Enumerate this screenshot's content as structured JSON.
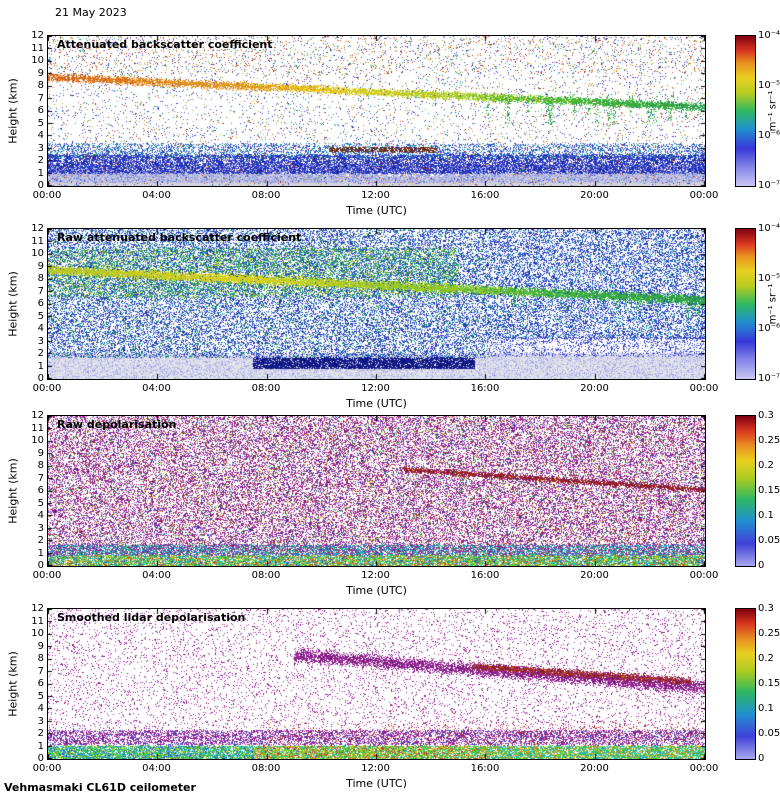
{
  "date_label": "21 May 2023",
  "footer": "Vehmasmaki CL61D ceilometer",
  "axis_color": "#000000",
  "chart_data": [
    {
      "type": "heatmap",
      "title": "Attenuated backscatter coefficient",
      "xlabel": "Time (UTC)",
      "ylabel": "Height (km)",
      "xlim": [
        0,
        24
      ],
      "ylim": [
        0,
        12
      ],
      "x_ticks": [
        "00:00",
        "04:00",
        "08:00",
        "12:00",
        "16:00",
        "20:00",
        "00:00"
      ],
      "y_ticks": [
        "0",
        "1",
        "2",
        "3",
        "4",
        "5",
        "6",
        "7",
        "8",
        "9",
        "10",
        "11",
        "12"
      ],
      "colorbar": {
        "scale": "log",
        "ticks": [
          "10⁻⁴",
          "10⁻⁵",
          "10⁻⁶",
          "10⁻⁷"
        ],
        "tick_pos": [
          0,
          0.3333,
          0.6667,
          1
        ],
        "unit": "m⁻¹ sr⁻¹",
        "stops": [
          [
            0,
            "#c8c8f4"
          ],
          [
            0.12,
            "#8888e8"
          ],
          [
            0.25,
            "#3838d8"
          ],
          [
            0.38,
            "#2090d0"
          ],
          [
            0.5,
            "#30b860"
          ],
          [
            0.62,
            "#b8cc20"
          ],
          [
            0.72,
            "#e8d020"
          ],
          [
            0.82,
            "#e89020"
          ],
          [
            0.9,
            "#d83820"
          ],
          [
            1,
            "#800010"
          ]
        ]
      },
      "features": [
        {
          "fill": [
            [
              0,
              1.45
            ],
            [
              2,
              1.3
            ],
            [
              4,
              1.12
            ],
            [
              6,
              1.0
            ],
            [
              8,
              0.95
            ],
            [
              10,
              0.85
            ],
            [
              12,
              0.78
            ],
            [
              13.5,
              0.7
            ],
            [
              15,
              0.78
            ],
            [
              17,
              0.9
            ],
            [
              19,
              1.0
            ],
            [
              21,
              1.05
            ],
            [
              24,
              1.15
            ]
          ],
          "colors": [
            "#d2d2dc"
          ]
        },
        {
          "t": [
            0,
            24
          ],
          "h": [
            0.25,
            1.7
          ],
          "count": 13000,
          "colors": [
            "#a8aee6",
            "#989ee0",
            "#b8bce9",
            "#8890dc",
            "#c6c8ee"
          ]
        },
        {
          "t": [
            0,
            24
          ],
          "h": [
            1.0,
            2.5
          ],
          "count": 14000,
          "colors": [
            "#1f2cb8",
            "#2a38c8",
            "#1422a8",
            "#3946d2"
          ]
        },
        {
          "t": [
            0,
            24
          ],
          "h": [
            2.2,
            3.4
          ],
          "count": 4500,
          "colors": [
            "#2a38c8",
            "#3946d2",
            "#2585c0",
            "#34a0b0"
          ]
        },
        {
          "t": [
            0,
            24
          ],
          "h": [
            0,
            12
          ],
          "count": 6500,
          "colors": [
            "#3946d2",
            "#2a38c8",
            "#2585c0",
            "#2fa04a",
            "#c05a20",
            "#b02828",
            "#c89c20",
            "#203890",
            "#3946d2"
          ]
        },
        {
          "t": [
            0,
            24
          ],
          "hstart": 8.7,
          "hend": 6.3,
          "sigma": 0.45,
          "count": 7500,
          "stops": [
            [
              0,
              "#d86818"
            ],
            [
              0.25,
              "#e09020"
            ],
            [
              0.45,
              "#e4cc20"
            ],
            [
              0.62,
              "#a8cc28"
            ],
            [
              0.8,
              "#48b838"
            ],
            [
              1,
              "#2aa04e"
            ]
          ]
        },
        {
          "t": [
            0,
            24
          ],
          "h": [
            9,
            12
          ],
          "count": 1100,
          "colors": [
            "#c05a20",
            "#b02828",
            "#c89c20",
            "#2fa04a",
            "#3946d2",
            "#d86818"
          ]
        },
        {
          "t": [
            10.3,
            14.2
          ],
          "h": [
            2.7,
            3.1
          ],
          "count": 650,
          "colors": [
            "#5a1a10",
            "#7a2a10",
            "#383838",
            "#8a3210"
          ]
        },
        {
          "streaks": true,
          "t": [
            16,
            24
          ],
          "htop": [
            7.3,
            6.9
          ],
          "len": [
            1.0,
            2.2
          ],
          "count": 26,
          "colors": [
            "#2aa04e",
            "#35b045",
            "#1f9840",
            "#48c040"
          ]
        }
      ]
    },
    {
      "type": "heatmap",
      "title": "Raw attenuated backscatter coefficient",
      "xlabel": "Time (UTC)",
      "ylabel": "Height (km)",
      "xlim": [
        0,
        24
      ],
      "ylim": [
        0,
        12
      ],
      "x_ticks": [
        "00:00",
        "04:00",
        "08:00",
        "12:00",
        "16:00",
        "20:00",
        "00:00"
      ],
      "y_ticks": [
        "0",
        "1",
        "2",
        "3",
        "4",
        "5",
        "6",
        "7",
        "8",
        "9",
        "10",
        "11",
        "12"
      ],
      "colorbar": {
        "scale": "log",
        "ticks": [
          "10⁻⁴",
          "10⁻⁵",
          "10⁻⁶",
          "10⁻⁷"
        ],
        "tick_pos": [
          0,
          0.3333,
          0.6667,
          1
        ],
        "unit": "m⁻¹ sr⁻¹",
        "stops": [
          [
            0,
            "#c8c8f4"
          ],
          [
            0.12,
            "#8888e8"
          ],
          [
            0.25,
            "#3838d8"
          ],
          [
            0.38,
            "#2090d0"
          ],
          [
            0.5,
            "#30b860"
          ],
          [
            0.62,
            "#b8cc20"
          ],
          [
            0.72,
            "#e8d020"
          ],
          [
            0.82,
            "#e89020"
          ],
          [
            0.9,
            "#d83820"
          ],
          [
            1,
            "#800010"
          ]
        ]
      },
      "features": [
        {
          "fill": [
            [
              0,
              2.0
            ],
            [
              6,
              1.9
            ],
            [
              12,
              1.8
            ],
            [
              18,
              1.9
            ],
            [
              24,
              2.0
            ]
          ],
          "colors": [
            "#e3e3ec"
          ]
        },
        {
          "t": [
            0,
            24
          ],
          "h": [
            0,
            2.1
          ],
          "count": 9000,
          "colors": [
            "#b0b4e4",
            "#c4c8ec",
            "#9aa0e0",
            "#d8d8ea"
          ]
        },
        {
          "t": [
            0,
            16
          ],
          "h": [
            1.7,
            12
          ],
          "count": 30000,
          "colors": [
            "#2a38c8",
            "#1d2cb4",
            "#3545d0",
            "#2585c0",
            "#2a38c8",
            "#1830a0",
            "#3545d0",
            "#28a0a0",
            "#2fa04a"
          ]
        },
        {
          "t": [
            16,
            24
          ],
          "h": [
            3.2,
            12
          ],
          "count": 13000,
          "colors": [
            "#2a38c8",
            "#1d2cb4",
            "#3545d0",
            "#2585c0",
            "#1830a0",
            "#3545d0",
            "#28a0a0"
          ]
        },
        {
          "t": [
            16,
            24
          ],
          "h": [
            1.8,
            3.4
          ],
          "count": 1600,
          "colors": [
            "#3545d0",
            "#2a38c8",
            "#9aa0e0"
          ]
        },
        {
          "t": [
            0,
            15
          ],
          "h": [
            6.5,
            10.5
          ],
          "count": 8500,
          "colors": [
            "#2fa04a",
            "#35b06a",
            "#28a0a0",
            "#58b830",
            "#2585c0",
            "#c8cc20"
          ]
        },
        {
          "t": [
            0,
            24
          ],
          "hstart": 8.7,
          "hend": 6.3,
          "sigma": 0.5,
          "count": 10500,
          "stops": [
            [
              0,
              "#b8c828"
            ],
            [
              0.3,
              "#d4d020"
            ],
            [
              0.55,
              "#98c828"
            ],
            [
              0.8,
              "#40b040"
            ],
            [
              1,
              "#2aa04e"
            ]
          ]
        },
        {
          "t": [
            7.5,
            15.6
          ],
          "h": [
            0.8,
            1.7
          ],
          "count": 4800,
          "colors": [
            "#0e1680",
            "#141c90",
            "#0a1070",
            "#1a2498"
          ]
        },
        {
          "streaks": true,
          "t": [
            16.5,
            24
          ],
          "htop": [
            7.0,
            6.6
          ],
          "len": [
            0.8,
            1.8
          ],
          "count": 20,
          "colors": [
            "#2aa04e",
            "#35b045",
            "#48c040"
          ]
        }
      ]
    },
    {
      "type": "heatmap",
      "title": "Raw depolarisation",
      "xlabel": "Time (UTC)",
      "ylabel": "Height (km)",
      "xlim": [
        0,
        24
      ],
      "ylim": [
        0,
        12
      ],
      "x_ticks": [
        "00:00",
        "04:00",
        "08:00",
        "12:00",
        "16:00",
        "20:00",
        "00:00"
      ],
      "y_ticks": [
        "0",
        "1",
        "2",
        "3",
        "4",
        "5",
        "6",
        "7",
        "8",
        "9",
        "10",
        "11",
        "12"
      ],
      "colorbar": {
        "scale": "linear",
        "ticks": [
          "0.3",
          "0.25",
          "0.2",
          "0.15",
          "0.1",
          "0.05",
          "0"
        ],
        "tick_pos": [
          0,
          0.1667,
          0.3333,
          0.5,
          0.6667,
          0.8333,
          1
        ],
        "unit": "",
        "stops": [
          [
            0,
            "#a8a8ee"
          ],
          [
            0.15,
            "#4040d8"
          ],
          [
            0.3,
            "#2090d0"
          ],
          [
            0.45,
            "#30b860"
          ],
          [
            0.58,
            "#a8cc20"
          ],
          [
            0.7,
            "#e8d020"
          ],
          [
            0.8,
            "#e89020"
          ],
          [
            0.9,
            "#d83820"
          ],
          [
            1,
            "#800010"
          ]
        ]
      },
      "features": [
        {
          "t": [
            0,
            24
          ],
          "h": [
            0.85,
            12
          ],
          "count": 52000,
          "colors": [
            "#8c1f8c",
            "#9c2a9c",
            "#7a167a",
            "#ae3cae",
            "#6a106a",
            "#c050c0",
            "#8c1f8c",
            "#9c2a9c",
            "#7a167a",
            "#ae3cae",
            "#b02828",
            "#2a38c8",
            "#2fa04a",
            "#d0a020"
          ]
        },
        {
          "t": [
            0,
            24
          ],
          "h": [
            0,
            0.85
          ],
          "count": 13000,
          "colors": [
            "#2fc040",
            "#48d040",
            "#d0d020",
            "#28b0b0",
            "#c04820",
            "#3050d0",
            "#88d020",
            "#e08820",
            "#20c8c8"
          ]
        },
        {
          "t": [
            0,
            24
          ],
          "h": [
            0.85,
            1.7
          ],
          "count": 6500,
          "colors": [
            "#28a0c0",
            "#3060d0",
            "#30b060",
            "#9c2a9c",
            "#20c8c8",
            "#9c2a9c"
          ]
        },
        {
          "t": [
            13,
            24
          ],
          "hstart": 7.7,
          "hend": 6.1,
          "sigma": 0.3,
          "count": 2200,
          "colors": [
            "#9c2020",
            "#8a1810",
            "#b03020",
            "#7a1a60"
          ]
        }
      ]
    },
    {
      "type": "heatmap",
      "title": "Smoothed lidar depolarisation",
      "xlabel": "Time (UTC)",
      "ylabel": "Height (km)",
      "xlim": [
        0,
        24
      ],
      "ylim": [
        0,
        12
      ],
      "x_ticks": [
        "00:00",
        "04:00",
        "08:00",
        "12:00",
        "16:00",
        "20:00",
        "00:00"
      ],
      "y_ticks": [
        "0",
        "1",
        "2",
        "3",
        "4",
        "5",
        "6",
        "7",
        "8",
        "9",
        "10",
        "11",
        "12"
      ],
      "colorbar": {
        "scale": "linear",
        "ticks": [
          "0.3",
          "0.25",
          "0.2",
          "0.15",
          "0.1",
          "0.05",
          "0"
        ],
        "tick_pos": [
          0,
          0.1667,
          0.3333,
          0.5,
          0.6667,
          0.8333,
          1
        ],
        "unit": "",
        "stops": [
          [
            0,
            "#a8a8ee"
          ],
          [
            0.15,
            "#4040d8"
          ],
          [
            0.3,
            "#2090d0"
          ],
          [
            0.45,
            "#30b860"
          ],
          [
            0.58,
            "#a8cc20"
          ],
          [
            0.7,
            "#e8d020"
          ],
          [
            0.8,
            "#e89020"
          ],
          [
            0.9,
            "#d83820"
          ],
          [
            1,
            "#800010"
          ]
        ]
      },
      "features": [
        {
          "t": [
            0,
            24
          ],
          "h": [
            1.4,
            12
          ],
          "count": 8500,
          "colors": [
            "#8c1f8c",
            "#9c2a9c",
            "#7a167a",
            "#ae3cae"
          ]
        },
        {
          "t": [
            9,
            24
          ],
          "hstart": 8.3,
          "hend": 5.7,
          "sigma": 0.75,
          "count": 6000,
          "colors": [
            "#8c1f8c",
            "#9c2a9c",
            "#7a167a",
            "#ae3cae",
            "#6a106a"
          ]
        },
        {
          "t": [
            15.5,
            23.5
          ],
          "hstart": 7.4,
          "hend": 6.2,
          "sigma": 0.4,
          "count": 2400,
          "colors": [
            "#9c2020",
            "#b03020",
            "#c06020",
            "#8a1810",
            "#7a1a60",
            "#9c2a9c"
          ]
        },
        {
          "t": [
            0,
            24
          ],
          "h": [
            1.1,
            2.3
          ],
          "count": 6500,
          "colors": [
            "#8c1f8c",
            "#9c2a9c",
            "#7a167a",
            "#ae3cae",
            "#3050d0"
          ]
        },
        {
          "t": [
            0,
            7.5
          ],
          "h": [
            0,
            1.05
          ],
          "count": 5200,
          "colors": [
            "#20c8c8",
            "#28a0c0",
            "#2fc040",
            "#3050d0",
            "#48d040",
            "#d0d020"
          ]
        },
        {
          "t": [
            7.5,
            16
          ],
          "h": [
            0,
            1.05
          ],
          "count": 5800,
          "colors": [
            "#2fc040",
            "#88d020",
            "#d0d020",
            "#e08820",
            "#c03030",
            "#48d040",
            "#20c8c8"
          ]
        },
        {
          "t": [
            16,
            24
          ],
          "h": [
            0,
            1.05
          ],
          "count": 5200,
          "colors": [
            "#20c8c8",
            "#2fc040",
            "#d0d020",
            "#28a0c0",
            "#48d040",
            "#e08820"
          ]
        },
        {
          "t": [
            8,
            24
          ],
          "h": [
            1.2,
            3.0
          ],
          "count": 550,
          "colors": [
            "#c03030",
            "#e08820",
            "#9c2020"
          ]
        }
      ]
    }
  ]
}
